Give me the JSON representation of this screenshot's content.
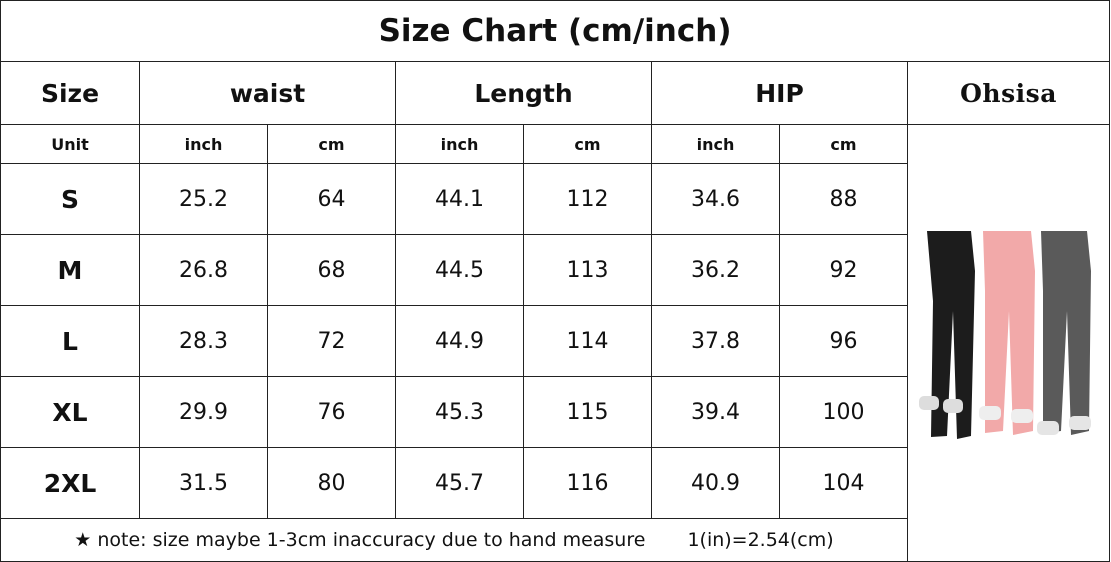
{
  "title": "Size Chart (cm/inch)",
  "header": [
    "Size",
    "waist",
    "Length",
    "HIP"
  ],
  "brand": "Ohsisa",
  "units": [
    "Unit",
    "inch",
    "cm",
    "inch",
    "cm",
    "inch",
    "cm"
  ],
  "rows": [
    [
      "S",
      "25.2",
      "64",
      "44.1",
      "112",
      "34.6",
      "88"
    ],
    [
      "M",
      "26.8",
      "68",
      "44.5",
      "113",
      "36.2",
      "92"
    ],
    [
      "L",
      "28.3",
      "72",
      "44.9",
      "114",
      "37.8",
      "96"
    ],
    [
      "XL",
      "29.9",
      "76",
      "45.3",
      "115",
      "39.4",
      "100"
    ],
    [
      "2XL",
      "31.5",
      "80",
      "45.7",
      "116",
      "40.9",
      "104"
    ]
  ],
  "note": "★ note: size maybe 1-3cm inaccuracy due to hand measure",
  "conversion": "1(in)=2.54(cm)"
}
